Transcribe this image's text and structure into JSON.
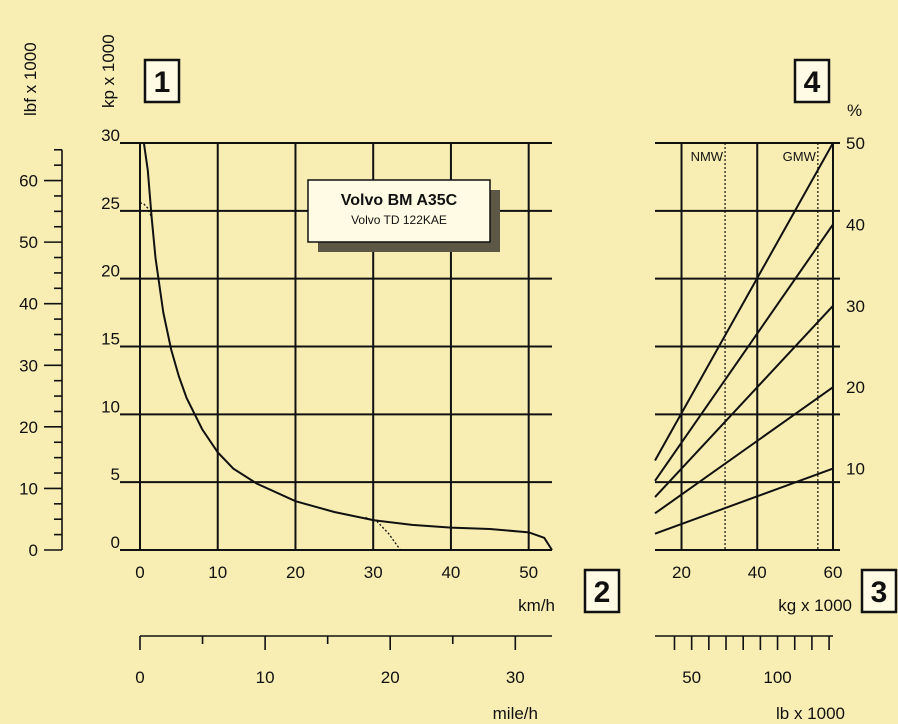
{
  "chart_data": {
    "type": "line",
    "panels": [
      {
        "id": "1",
        "x_unit": "km/h",
        "x_unit_secondary": "mile/h",
        "y_unit": "kp x 1000",
        "y_unit_secondary": "lbf x 1000",
        "xlim": [
          0,
          53
        ],
        "ylim": [
          0,
          30
        ],
        "x_ticks": [
          0,
          10,
          20,
          30,
          40,
          50
        ],
        "y_ticks": [
          0,
          5,
          10,
          15,
          20,
          25,
          30
        ],
        "x_secondary_ticks": [
          0,
          10,
          20,
          30
        ],
        "y_secondary_ticks": [
          0,
          10,
          20,
          30,
          40,
          50,
          60
        ],
        "grid": true,
        "annotation": {
          "title": "Volvo BM A35C",
          "subtitle": "Volvo TD 122KAE"
        },
        "series": [
          {
            "style": "solid",
            "x": [
              0.5,
              1,
              1.5,
              2,
              3,
              4,
              5,
              6,
              8,
              10,
              12,
              15,
              20,
              25,
              30,
              35,
              40,
              45,
              50,
              52,
              53
            ],
            "y": [
              30,
              28,
              24.5,
              21.5,
              17.5,
              14.8,
              12.8,
              11.2,
              8.9,
              7.2,
              6,
              4.9,
              3.6,
              2.8,
              2.2,
              1.85,
              1.65,
              1.55,
              1.3,
              0.9,
              0
            ]
          },
          {
            "style": "dotted",
            "x": [
              0,
              0.5,
              1,
              1.5
            ],
            "y": [
              25.6,
              25.5,
              25.2,
              24.5
            ]
          },
          {
            "style": "dotted",
            "x": [
              29,
              30.5,
              32,
              33,
              33.5
            ],
            "y": [
              2.4,
              2.1,
              1.2,
              0.4,
              0
            ]
          }
        ]
      },
      {
        "id": "4",
        "x_unit": "kg x 1000",
        "x_unit_secondary": "lb x 1000",
        "y_unit": "%",
        "xlim": [
          13,
          60
        ],
        "ylim": [
          0,
          50
        ],
        "x_ticks": [
          20,
          40,
          60
        ],
        "y_ticks": [
          10,
          20,
          30,
          40,
          50
        ],
        "x_secondary_ticks": [
          50,
          100
        ],
        "grid": true,
        "markers": [
          {
            "label": "NMW",
            "x": 31.5
          },
          {
            "label": "GMW",
            "x": 56
          }
        ],
        "series": [
          {
            "x": [
              13,
              60
            ],
            "y": [
              2,
              10
            ]
          },
          {
            "x": [
              13,
              60
            ],
            "y": [
              4.5,
              20
            ]
          },
          {
            "x": [
              13,
              60
            ],
            "y": [
              6.5,
              30
            ]
          },
          {
            "x": [
              13,
              60
            ],
            "y": [
              8.5,
              40
            ]
          },
          {
            "x": [
              13,
              60
            ],
            "y": [
              11,
              50
            ]
          }
        ]
      }
    ],
    "box_labels": [
      "1",
      "2",
      "3",
      "4"
    ]
  }
}
